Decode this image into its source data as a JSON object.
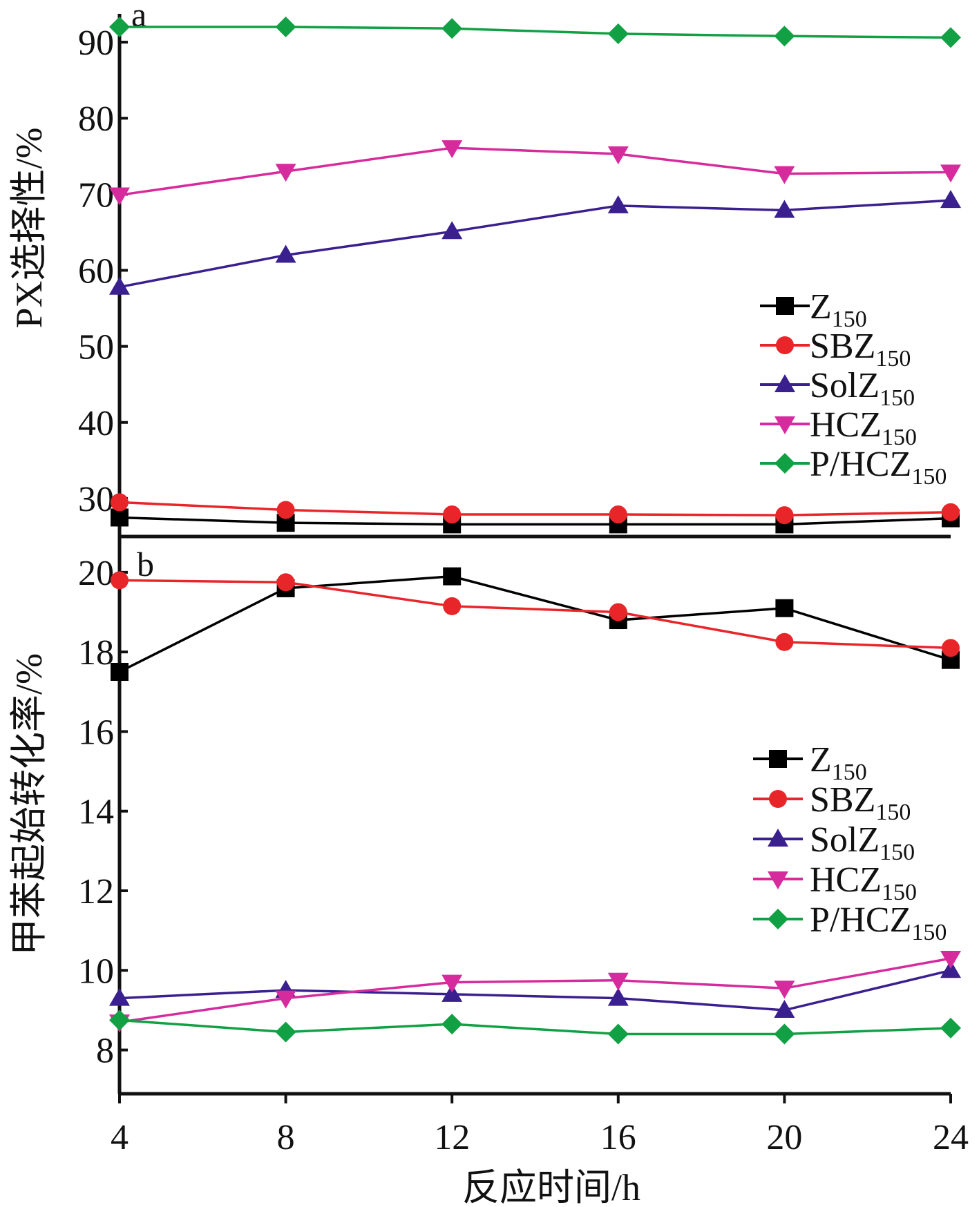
{
  "chart_data": [
    {
      "type": "line",
      "panel": "a",
      "ylabel": "PX选择性/%",
      "xlabel": "",
      "x": [
        4,
        8,
        12,
        16,
        20,
        24
      ],
      "xlim": [
        4,
        24
      ],
      "ylim": [
        25,
        93
      ],
      "yticks": [
        30,
        40,
        50,
        60,
        70,
        80,
        90
      ],
      "grid": false,
      "legend_position": "center-right",
      "series": [
        {
          "name": "Z",
          "sub": "150",
          "color": "#000000",
          "marker": "square",
          "values": [
            27.5,
            26.8,
            26.6,
            26.6,
            26.6,
            27.4
          ]
        },
        {
          "name": "SBZ",
          "sub": "150",
          "color": "#e8262a",
          "marker": "circle",
          "values": [
            29.5,
            28.5,
            27.9,
            27.9,
            27.8,
            28.2
          ]
        },
        {
          "name": "SolZ",
          "sub": "150",
          "color": "#3a1f8f",
          "marker": "triangle-up",
          "values": [
            57.8,
            62.0,
            65.1,
            68.5,
            67.9,
            69.2
          ]
        },
        {
          "name": "HCZ",
          "sub": "150",
          "color": "#d62b9d",
          "marker": "triangle-down",
          "values": [
            69.9,
            73.0,
            76.1,
            75.3,
            72.7,
            72.9
          ]
        },
        {
          "name": "P/HCZ",
          "sub": "150",
          "color": "#12a044",
          "marker": "diamond",
          "values": [
            92.0,
            92.0,
            91.8,
            91.1,
            90.8,
            90.6
          ]
        }
      ]
    },
    {
      "type": "line",
      "panel": "b",
      "ylabel": "甲苯起始转化率/%",
      "xlabel": "反应时间/h",
      "x": [
        4,
        8,
        12,
        16,
        20,
        24
      ],
      "xlim": [
        4,
        24
      ],
      "xticks": [
        4,
        8,
        12,
        16,
        20,
        24
      ],
      "ylim": [
        6.9,
        20.9
      ],
      "yticks": [
        8,
        10,
        12,
        14,
        16,
        18,
        20
      ],
      "grid": false,
      "legend_position": "center-right",
      "series": [
        {
          "name": "Z",
          "sub": "150",
          "color": "#000000",
          "marker": "square",
          "values": [
            17.5,
            19.6,
            19.9,
            18.8,
            19.1,
            17.8
          ]
        },
        {
          "name": "SBZ",
          "sub": "150",
          "color": "#e8262a",
          "marker": "circle",
          "values": [
            19.8,
            19.75,
            19.15,
            19.0,
            18.25,
            18.1
          ]
        },
        {
          "name": "SolZ",
          "sub": "150",
          "color": "#3a1f8f",
          "marker": "triangle-up",
          "values": [
            9.3,
            9.5,
            9.4,
            9.3,
            9.0,
            10.0
          ]
        },
        {
          "name": "HCZ",
          "sub": "150",
          "color": "#d62b9d",
          "marker": "triangle-down",
          "values": [
            8.7,
            9.3,
            9.7,
            9.75,
            9.55,
            10.3
          ]
        },
        {
          "name": "P/HCZ",
          "sub": "150",
          "color": "#12a044",
          "marker": "diamond",
          "values": [
            8.75,
            8.45,
            8.65,
            8.4,
            8.4,
            8.55
          ]
        }
      ]
    }
  ]
}
